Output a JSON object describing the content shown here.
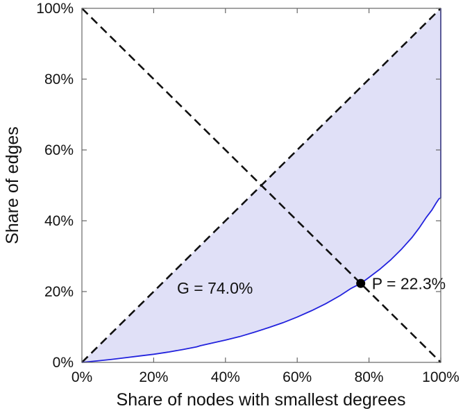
{
  "chart_data": {
    "type": "area",
    "title": "",
    "xlabel": "Share of nodes with smallest degrees",
    "ylabel": "Share of edges",
    "xlim": [
      0,
      100
    ],
    "ylim": [
      0,
      100
    ],
    "grid": false,
    "legend": "none",
    "x_ticks": [
      "0%",
      "20%",
      "40%",
      "60%",
      "80%",
      "100%"
    ],
    "y_ticks": [
      "0%",
      "20%",
      "40%",
      "60%",
      "80%",
      "100%"
    ],
    "x_tick_values": [
      0,
      20,
      40,
      60,
      80,
      100
    ],
    "y_tick_values": [
      0,
      20,
      40,
      60,
      80,
      100
    ],
    "fill_color": "#e0e0f7",
    "series": [
      {
        "name": "lorenz-curve",
        "color": "#2222dd",
        "x": [
          0,
          4,
          8,
          12,
          16,
          20,
          24,
          28,
          32,
          33,
          36,
          40,
          44,
          48,
          52,
          56,
          60,
          64,
          68,
          72,
          75,
          77.7,
          80,
          83,
          86,
          89,
          92,
          94,
          96,
          97.5,
          98.7,
          99.5,
          100,
          100
        ],
        "y": [
          0,
          0.4,
          0.8,
          1.3,
          1.8,
          2.3,
          2.9,
          3.6,
          4.4,
          4.7,
          5.4,
          6.3,
          7.3,
          8.5,
          9.8,
          11.2,
          12.8,
          14.6,
          16.6,
          18.9,
          20.9,
          22.3,
          24.0,
          26.3,
          28.9,
          31.9,
          35.3,
          38.0,
          41.0,
          43.0,
          45.0,
          46.2,
          46.5,
          100
        ]
      }
    ],
    "reference_lines": [
      {
        "name": "diagonal",
        "from": [
          0,
          0
        ],
        "to": [
          100,
          100
        ],
        "style": "dashed",
        "color": "#111111"
      },
      {
        "name": "anti-diagonal",
        "from": [
          0,
          100
        ],
        "to": [
          100,
          0
        ],
        "style": "dashed",
        "color": "#111111"
      }
    ],
    "point": {
      "x": 77.7,
      "y": 22.3,
      "color": "#000000"
    },
    "annotations": [
      {
        "name": "gini-annotation",
        "text": "G = 74.0%",
        "x": 26.5,
        "y": 21,
        "anchor": "start"
      },
      {
        "name": "p-annotation",
        "text": "P = 22.3%",
        "x": 80.8,
        "y": 22.3,
        "anchor": "start"
      }
    ]
  }
}
